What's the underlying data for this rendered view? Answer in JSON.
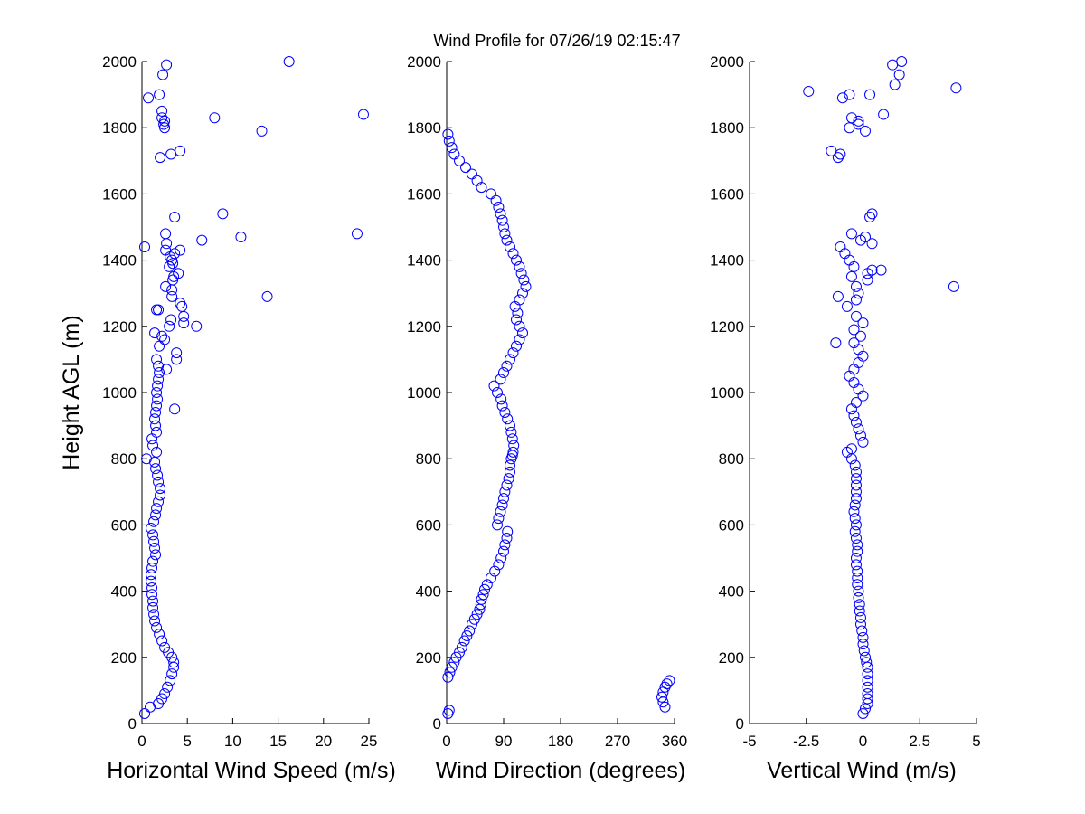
{
  "figure": {
    "title": "Wind Profile for  07/26/19 02:15:47"
  },
  "chart_data": [
    {
      "type": "scatter",
      "xlabel": "Horizontal Wind Speed (m/s)",
      "ylabel": "Height AGL (m)",
      "xlim": [
        0,
        25
      ],
      "ylim": [
        0,
        2000
      ],
      "xticks": [
        0,
        5,
        10,
        15,
        20,
        25
      ],
      "yticks": [
        0,
        200,
        400,
        600,
        800,
        1000,
        1200,
        1400,
        1600,
        1800,
        2000
      ],
      "marker_color": "#0000ff",
      "series": [
        {
          "x": [
            0.3,
            0.9,
            1.8,
            2.2,
            2.5,
            2.8,
            3.1,
            3.3,
            3.5,
            3.5,
            3.3,
            2.9,
            2.5,
            2.2,
            1.9,
            1.6,
            1.4,
            1.3,
            1.2,
            1.2,
            1.1,
            1.1,
            1.0,
            1.0,
            1.1,
            1.2,
            1.5,
            1.4,
            1.3,
            1.2,
            1.0,
            1.3,
            1.5,
            1.6,
            1.8,
            2.0,
            2.0,
            1.8,
            1.7,
            1.5,
            1.4,
            0.5,
            1.6,
            1.2,
            1.1,
            1.6,
            1.5,
            1.4,
            1.5,
            1.6,
            1.7,
            1.6,
            1.7,
            1.8,
            1.9,
            1.8,
            1.6,
            3.6,
            2.7,
            3.8,
            3.8,
            1.9,
            2.5,
            1.4,
            1.6,
            2.2,
            3.0,
            4.6,
            4.6,
            6.0,
            3.3,
            4.4,
            1.8,
            4.2,
            3.2,
            2.6,
            3.4,
            13.8,
            3.3,
            3.5,
            3.0,
            4.0,
            3.3,
            3.1,
            2.6,
            3.4,
            3.6,
            2.7,
            4.2,
            0.3,
            2.6,
            23.7,
            10.9,
            6.6,
            3.6,
            8.9,
            2.0,
            4.2,
            3.2,
            2.5,
            2.4,
            2.5,
            2.2,
            8.0,
            2.2,
            13.2,
            24.4,
            0.7,
            1.9,
            2.3,
            2.7,
            16.2
          ],
          "y": [
            30,
            50,
            60,
            75,
            90,
            110,
            130,
            150,
            170,
            185,
            200,
            215,
            230,
            250,
            270,
            290,
            310,
            330,
            350,
            370,
            390,
            410,
            430,
            450,
            470,
            490,
            510,
            530,
            550,
            570,
            590,
            610,
            630,
            650,
            670,
            690,
            710,
            730,
            750,
            770,
            790,
            800,
            820,
            840,
            860,
            880,
            900,
            920,
            940,
            960,
            980,
            1000,
            1020,
            1040,
            1060,
            1080,
            1100,
            950,
            1070,
            1100,
            1120,
            1140,
            1160,
            1180,
            1250,
            1170,
            1200,
            1210,
            1230,
            1200,
            1290,
            1260,
            1250,
            1270,
            1220,
            1320,
            1340,
            1290,
            1310,
            1350,
            1380,
            1360,
            1400,
            1410,
            1430,
            1390,
            1420,
            1450,
            1430,
            1440,
            1480,
            1480,
            1470,
            1460,
            1530,
            1540,
            1710,
            1730,
            1720,
            1800,
            1810,
            1820,
            1850,
            1830,
            1830,
            1790,
            1840,
            1890,
            1900,
            1960,
            1990,
            2000
          ]
        }
      ]
    },
    {
      "type": "scatter",
      "xlabel": "Wind Direction (degrees)",
      "ylabel": "",
      "xlim": [
        0,
        360
      ],
      "ylim": [
        0,
        2000
      ],
      "xticks": [
        0,
        90,
        180,
        270,
        360
      ],
      "yticks": [
        0,
        200,
        400,
        600,
        800,
        1000,
        1200,
        1400,
        1600,
        1800,
        2000
      ],
      "marker_color": "#0000ff",
      "series": [
        {
          "x": [
            2,
            4,
            345,
            342,
            340,
            342,
            345,
            348,
            352,
            2,
            5,
            8,
            12,
            15,
            20,
            24,
            28,
            32,
            36,
            40,
            44,
            48,
            52,
            54,
            55,
            58,
            60,
            64,
            70,
            76,
            82,
            86,
            90,
            92,
            95,
            96,
            80,
            82,
            85,
            88,
            90,
            92,
            95,
            98,
            100,
            100,
            102,
            104,
            105,
            106,
            104,
            102,
            100,
            96,
            92,
            88,
            86,
            80,
            75,
            85,
            90,
            95,
            100,
            105,
            110,
            115,
            120,
            115,
            110,
            112,
            108,
            115,
            120,
            125,
            122,
            118,
            115,
            110,
            105,
            100,
            95,
            92,
            90,
            88,
            85,
            82,
            78,
            70,
            55,
            48,
            40,
            30,
            20,
            12,
            8,
            4,
            2
          ],
          "y": [
            30,
            40,
            50,
            65,
            80,
            95,
            110,
            120,
            130,
            140,
            155,
            170,
            185,
            200,
            215,
            230,
            250,
            265,
            280,
            300,
            315,
            330,
            345,
            360,
            375,
            390,
            405,
            420,
            440,
            460,
            480,
            500,
            520,
            540,
            560,
            580,
            600,
            620,
            640,
            660,
            680,
            700,
            720,
            740,
            760,
            780,
            800,
            810,
            820,
            840,
            860,
            880,
            900,
            920,
            940,
            960,
            980,
            1000,
            1020,
            1040,
            1060,
            1080,
            1100,
            1120,
            1140,
            1160,
            1180,
            1200,
            1220,
            1240,
            1260,
            1280,
            1300,
            1320,
            1340,
            1360,
            1380,
            1400,
            1420,
            1440,
            1460,
            1480,
            1500,
            1520,
            1540,
            1560,
            1580,
            1600,
            1620,
            1640,
            1660,
            1680,
            1700,
            1720,
            1740,
            1760,
            1780
          ]
        }
      ]
    },
    {
      "type": "scatter",
      "xlabel": "Vertical Wind (m/s)",
      "ylabel": "",
      "xlim": [
        -5,
        5
      ],
      "ylim": [
        0,
        2000
      ],
      "xticks": [
        -5,
        -2.5,
        0,
        2.5,
        5
      ],
      "yticks": [
        0,
        200,
        400,
        600,
        800,
        1000,
        1200,
        1400,
        1600,
        1800,
        2000
      ],
      "marker_color": "#0000ff",
      "series": [
        {
          "x": [
            0,
            0.1,
            0.2,
            0.2,
            0.2,
            0.2,
            0.2,
            0.2,
            0.2,
            0.15,
            0.1,
            0.05,
            0,
            0,
            -0.05,
            -0.1,
            -0.1,
            -0.15,
            -0.15,
            -0.2,
            -0.2,
            -0.25,
            -0.25,
            -0.25,
            -0.3,
            -0.3,
            -0.25,
            -0.25,
            -0.3,
            -0.35,
            -0.3,
            -0.35,
            -0.4,
            -0.35,
            -0.3,
            -0.3,
            -0.3,
            -0.3,
            -0.3,
            -0.35,
            -0.5,
            -0.7,
            -0.5,
            0,
            -0.1,
            -0.2,
            -0.3,
            -0.4,
            -0.5,
            -0.3,
            0,
            -0.2,
            -0.4,
            -0.6,
            -0.4,
            -0.2,
            0,
            -0.2,
            -0.4,
            -0.1,
            -0.4,
            -1.2,
            0,
            -0.3,
            -0.7,
            -0.3,
            -0.2,
            -1.1,
            0.2,
            -0.3,
            -0.5,
            -0.4,
            0.2,
            0.4,
            0.8,
            -0.6,
            -0.8,
            -1.0,
            -0.1,
            0.1,
            0.4,
            -0.5,
            0.3,
            0.4,
            -1.4,
            -1.1,
            4.0,
            -1.0,
            -0.5,
            -0.6,
            -0.2,
            0.1,
            -0.2,
            0.9,
            0.3,
            4.1,
            1.4,
            1.6,
            -2.4,
            -0.9,
            -0.6,
            1.3,
            1.7
          ],
          "y": [
            30,
            45,
            60,
            75,
            90,
            110,
            130,
            150,
            170,
            185,
            200,
            220,
            240,
            260,
            280,
            300,
            320,
            340,
            360,
            380,
            400,
            420,
            440,
            460,
            480,
            500,
            520,
            540,
            560,
            580,
            600,
            620,
            640,
            660,
            680,
            700,
            720,
            740,
            760,
            780,
            800,
            820,
            830,
            850,
            870,
            890,
            910,
            930,
            950,
            970,
            990,
            1010,
            1030,
            1050,
            1070,
            1090,
            1110,
            1130,
            1150,
            1170,
            1190,
            1150,
            1210,
            1230,
            1260,
            1280,
            1300,
            1290,
            1340,
            1320,
            1350,
            1380,
            1360,
            1370,
            1370,
            1400,
            1420,
            1440,
            1460,
            1470,
            1450,
            1480,
            1530,
            1540,
            1730,
            1710,
            1320,
            1720,
            1830,
            1800,
            1810,
            1790,
            1820,
            1840,
            1900,
            1920,
            1930,
            1960,
            1910,
            1890,
            1900,
            1990,
            2000
          ]
        }
      ]
    }
  ]
}
